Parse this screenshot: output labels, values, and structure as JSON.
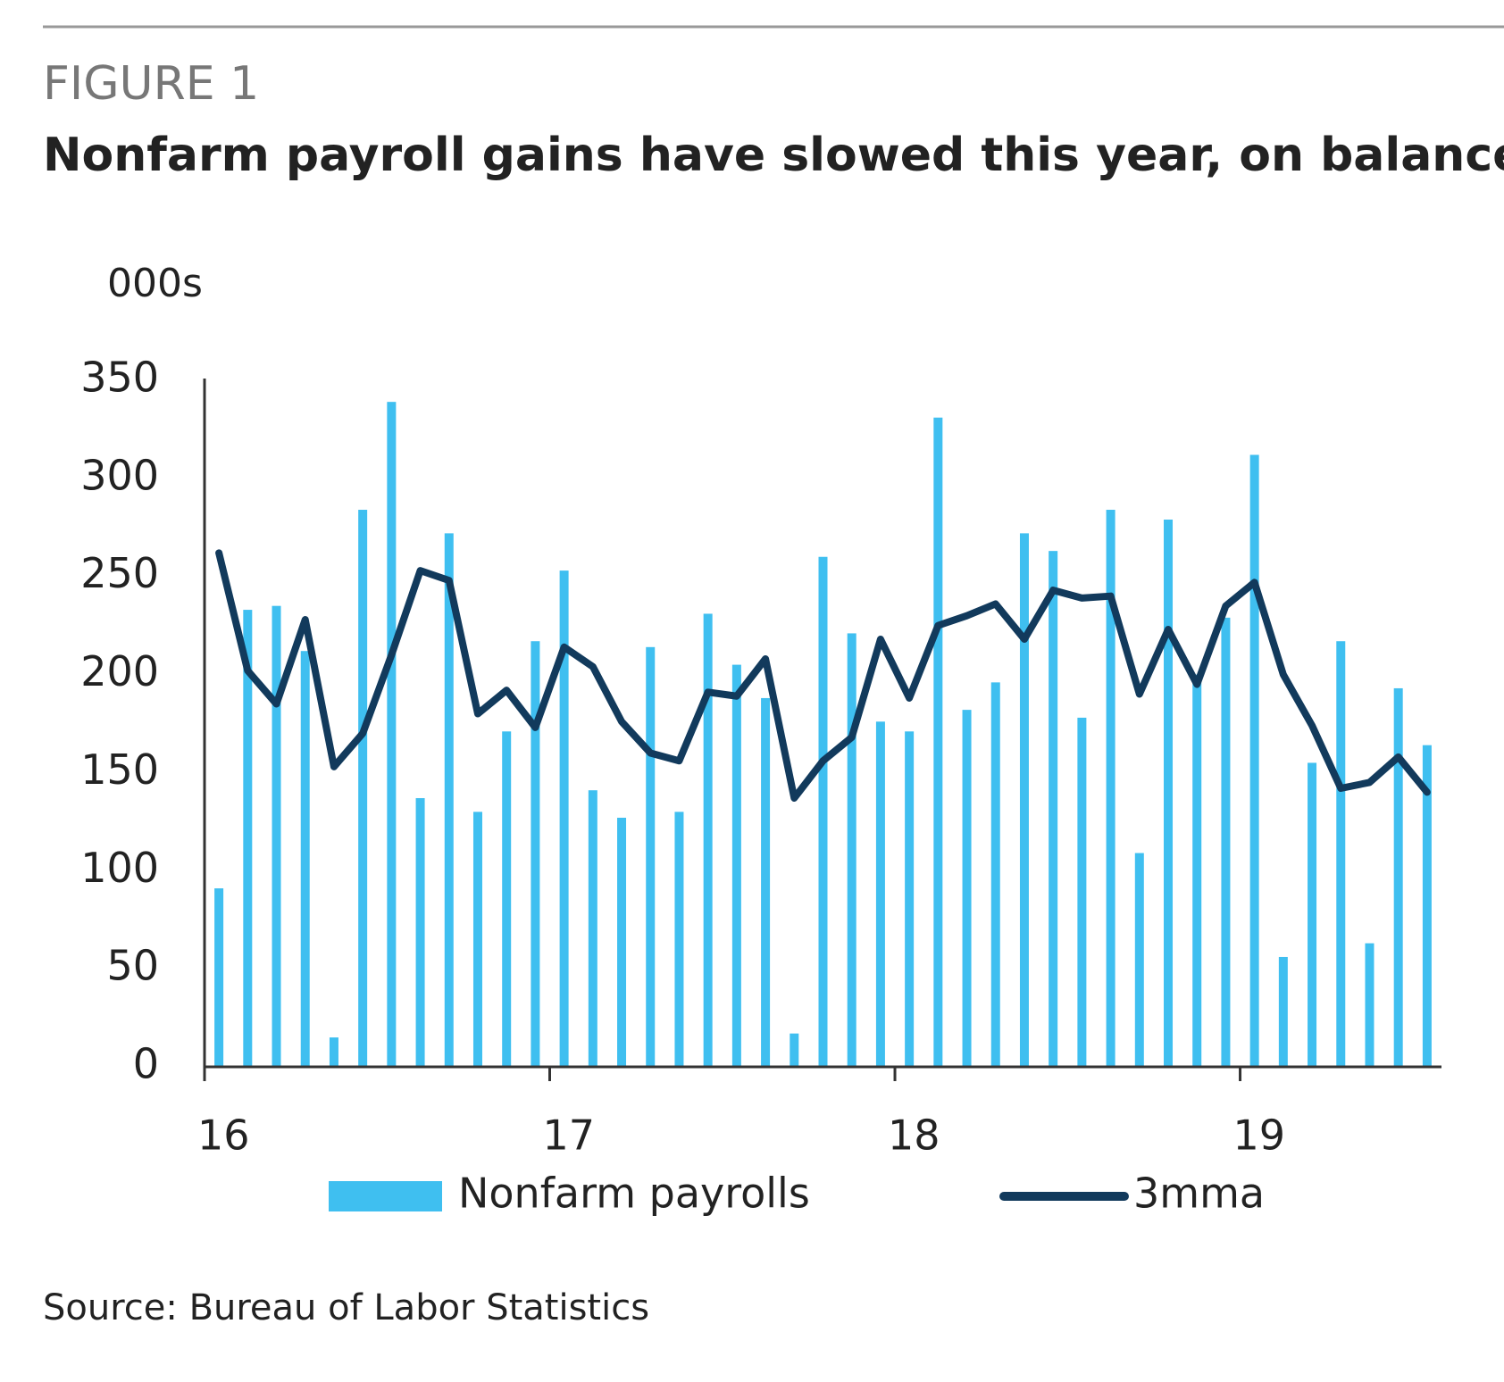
{
  "chart_data": {
    "type": "bar_line",
    "figure_label": "FIGURE 1",
    "title": "Nonfarm payroll gains have slowed this year, on balance",
    "y_unit": "000s",
    "source": "Source: Bureau of Labor Statistics",
    "categories": [
      "16",
      null,
      null,
      null,
      null,
      null,
      null,
      null,
      null,
      null,
      null,
      null,
      "17",
      null,
      null,
      null,
      null,
      null,
      null,
      null,
      null,
      null,
      null,
      null,
      "18",
      null,
      null,
      null,
      null,
      null,
      null,
      null,
      null,
      null,
      null,
      null,
      "19",
      null,
      null,
      null,
      null,
      null,
      null
    ],
    "series": [
      {
        "name": "Nonfarm payrolls",
        "type": "bar",
        "color": "#3fbff0",
        "values": [
          91,
          233,
          235,
          212,
          15,
          284,
          339,
          137,
          272,
          130,
          171,
          217,
          253,
          141,
          127,
          214,
          130,
          231,
          205,
          188,
          17,
          260,
          221,
          176,
          171,
          331,
          182,
          196,
          272,
          263,
          178,
          284,
          109,
          279,
          200,
          229,
          312,
          56,
          155,
          217,
          63,
          193,
          164
        ]
      },
      {
        "name": "3mma",
        "type": "line",
        "color": "#123a5c",
        "values": [
          262,
          202,
          185,
          228,
          153,
          170,
          210,
          253,
          248,
          180,
          192,
          173,
          214,
          204,
          176,
          160,
          156,
          191,
          189,
          208,
          137,
          156,
          168,
          218,
          188,
          225,
          230,
          236,
          218,
          243,
          239,
          240,
          190,
          223,
          195,
          235,
          247,
          200,
          174,
          142,
          145,
          158,
          140
        ]
      }
    ],
    "ylim": [
      0,
      350
    ],
    "yticks": [
      0,
      50,
      100,
      150,
      200,
      250,
      300,
      350
    ]
  }
}
